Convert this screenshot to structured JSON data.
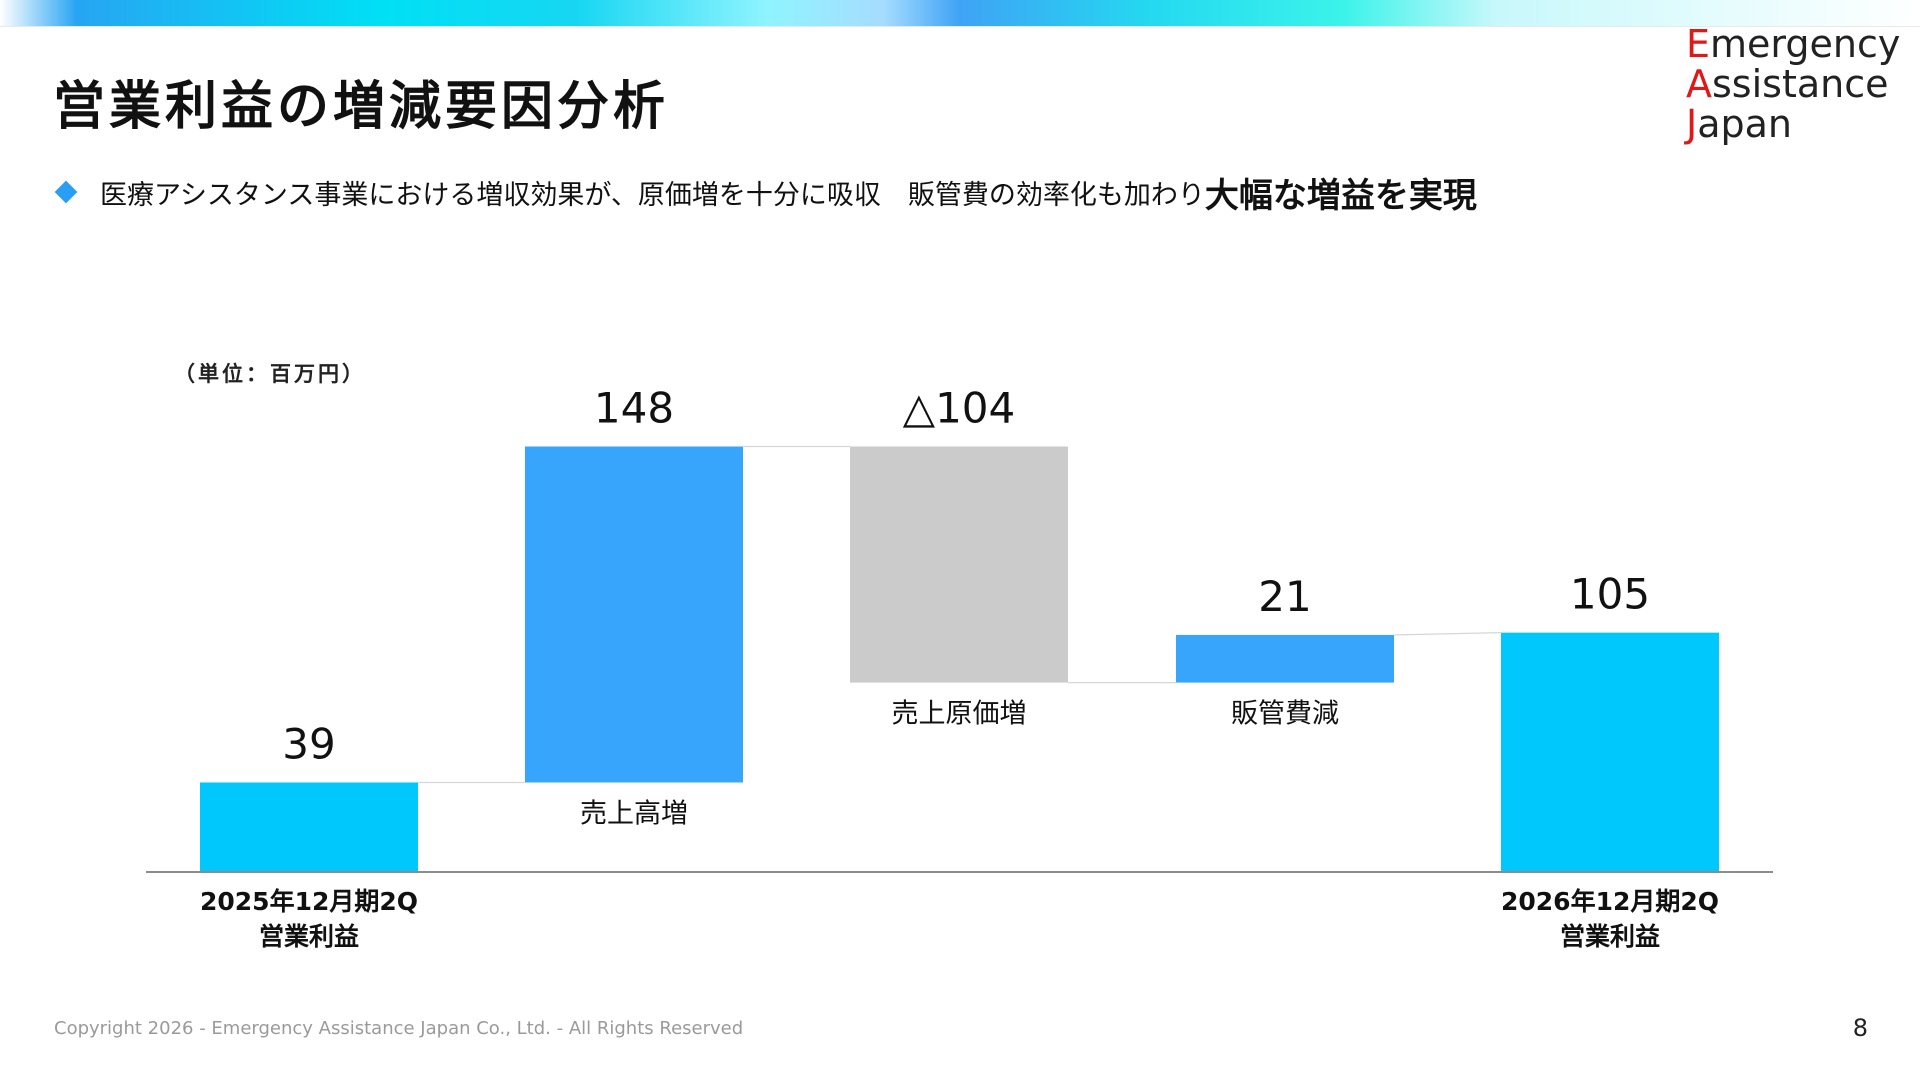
{
  "page": {
    "title": "営業利益の増減要因分析",
    "bullet": {
      "text": "医療アシスタンス事業における増収効果が、原価増を十分に吸収　販管費の効率化も加わり",
      "emphasis": "大幅な増益を実現"
    },
    "footer": "Copyright 2026 - Emergency Assistance Japan Co., Ltd. - All Rights Reserved",
    "page_number": "8"
  },
  "logo": {
    "lines": [
      {
        "initial": "E",
        "rest": "mergency"
      },
      {
        "initial": "A",
        "rest": "ssistance"
      },
      {
        "initial": "J",
        "rest": "apan"
      }
    ]
  },
  "colors": {
    "endpoint_bar": "#00c7fc",
    "increase_bar": "#38a5fc",
    "decrease_bar": "#cbcbcb",
    "accent_red": "#e01818"
  },
  "chart_data": {
    "type": "waterfall",
    "unit_label": "（単位：百万円）",
    "steps": [
      {
        "category": "2025年12月期2Q\n営業利益",
        "value": 39,
        "label": "39",
        "kind": "total"
      },
      {
        "category": "売上高増",
        "value": 148,
        "label": "148",
        "kind": "increase"
      },
      {
        "category": "売上原価増",
        "value": -104,
        "label": "△104",
        "kind": "decrease"
      },
      {
        "category": "販管費減",
        "value": 21,
        "label": "21",
        "kind": "increase"
      },
      {
        "category": "2026年12月期2Q\n営業利益",
        "value": 105,
        "label": "105",
        "kind": "total"
      }
    ]
  }
}
